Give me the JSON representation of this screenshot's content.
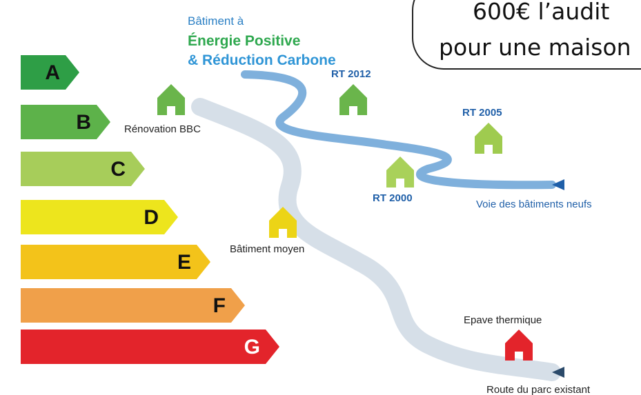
{
  "energy_classes": [
    "A",
    "B",
    "C",
    "D",
    "E",
    "F",
    "G"
  ],
  "headline": {
    "line1": "Bâtiment à",
    "line2": "Énergie Positive",
    "line3": "& Réduction Carbone"
  },
  "callout": {
    "line1": "600€ l’audit",
    "line2": "pour une maison"
  },
  "markers": [
    "Rénovation BBC",
    "RT 2012",
    "RT 2005",
    "RT 2000",
    "Voie des bâtiments neufs",
    "Bâtiment moyen",
    "Epave thermique",
    "Route du parc existant"
  ]
}
